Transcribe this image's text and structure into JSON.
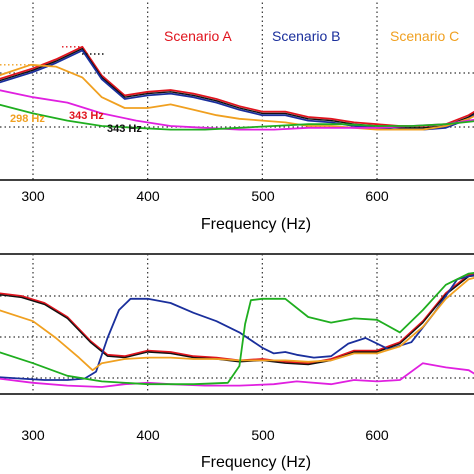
{
  "colors": {
    "scenario_a": "#e0141e",
    "scenario_b": "#1a2f9c",
    "scenario_c": "#f0a020",
    "black": "#111111",
    "green": "#1fae1f",
    "magenta": "#e020e0",
    "grid": "#333333"
  },
  "chart_data": [
    {
      "type": "line",
      "title": "",
      "xlabel": "Frequency (Hz)",
      "ylabel": "",
      "xlim": [
        270,
        690
      ],
      "ylim": [
        0,
        100
      ],
      "y_ticks_hidden": true,
      "x_ticks": [
        "300",
        "400",
        "500",
        "600"
      ],
      "grid": true,
      "legend_position": "top",
      "legend": [
        {
          "label": "Scenario A",
          "color": "#e0141e"
        },
        {
          "label": "Scenario B",
          "color": "#1a2f9c"
        },
        {
          "label": "Scenario C",
          "color": "#f0a020"
        }
      ],
      "annotations": [
        {
          "text": "298 Hz",
          "x": 298,
          "color": "#f0a020"
        },
        {
          "text": "343 Hz",
          "x": 343,
          "color": "#e0141e"
        },
        {
          "text": "343 Hz",
          "x": 343,
          "color": "#111111"
        }
      ],
      "series": [
        {
          "color": "#e0141e",
          "x": [
            270,
            300,
            320,
            343,
            360,
            380,
            400,
            420,
            440,
            460,
            480,
            500,
            520,
            540,
            560,
            580,
            600,
            620,
            640,
            660,
            680,
            690
          ],
          "y": [
            56,
            62,
            67,
            74,
            58,
            47,
            49,
            50,
            48,
            45,
            41,
            38,
            38,
            35,
            34,
            32,
            31,
            30,
            30,
            31,
            36,
            40
          ]
        },
        {
          "color": "#111111",
          "x": [
            270,
            300,
            320,
            343,
            360,
            380,
            400,
            420,
            440,
            460,
            480,
            500,
            520,
            540,
            560,
            580,
            600,
            620,
            640,
            660,
            680,
            690
          ],
          "y": [
            55,
            61,
            66,
            73,
            57,
            46,
            48,
            49,
            47,
            44,
            40,
            37,
            37,
            34,
            33,
            31,
            30,
            29,
            29,
            30,
            35,
            39
          ]
        },
        {
          "color": "#1a2f9c",
          "x": [
            270,
            300,
            320,
            343,
            360,
            380,
            400,
            420,
            440,
            460,
            480,
            500,
            520,
            540,
            560,
            580,
            600,
            620,
            640,
            660,
            680,
            690
          ],
          "y": [
            54,
            60,
            65,
            72,
            56,
            45,
            47,
            48,
            46,
            43,
            39,
            36,
            36,
            33,
            32,
            30,
            29,
            28,
            28,
            29,
            34,
            38
          ]
        },
        {
          "color": "#f0a020",
          "x": [
            270,
            298,
            320,
            343,
            360,
            380,
            400,
            420,
            440,
            460,
            480,
            500,
            520,
            540,
            560,
            580,
            600,
            620,
            640,
            660,
            680,
            690
          ],
          "y": [
            58,
            64,
            63,
            57,
            46,
            40,
            40,
            42,
            39,
            36,
            34,
            33,
            32,
            30,
            30,
            29,
            28,
            28,
            28,
            30,
            34,
            37
          ]
        },
        {
          "color": "#e020e0",
          "x": [
            270,
            300,
            330,
            360,
            390,
            420,
            450,
            480,
            510,
            540,
            570,
            600,
            630,
            660,
            690
          ],
          "y": [
            50,
            46,
            43,
            37,
            33,
            30,
            29,
            28,
            28,
            29,
            29,
            29,
            30,
            31,
            34
          ]
        },
        {
          "color": "#1fae1f",
          "x": [
            270,
            300,
            330,
            360,
            390,
            420,
            450,
            480,
            510,
            540,
            570,
            600,
            630,
            660,
            690
          ],
          "y": [
            42,
            37,
            33,
            30,
            29,
            28,
            28,
            29,
            30,
            31,
            31,
            30,
            30,
            31,
            33
          ]
        }
      ]
    },
    {
      "type": "line",
      "title": "",
      "xlabel": "Frequency (Hz)",
      "ylabel": "",
      "xlim": [
        270,
        690
      ],
      "ylim": [
        0,
        100
      ],
      "y_ticks_hidden": true,
      "x_ticks": [
        "300",
        "400",
        "500",
        "600"
      ],
      "grid": true,
      "series": [
        {
          "color": "#e0141e",
          "x": [
            270,
            290,
            310,
            330,
            350,
            365,
            380,
            400,
            420,
            440,
            460,
            480,
            500,
            520,
            540,
            560,
            580,
            600,
            620,
            640,
            660,
            680,
            690
          ],
          "y": [
            72,
            70,
            65,
            55,
            38,
            28,
            27,
            31,
            30,
            27,
            26,
            24,
            25,
            23,
            22,
            25,
            31,
            31,
            37,
            52,
            72,
            85,
            86
          ]
        },
        {
          "color": "#111111",
          "x": [
            270,
            290,
            310,
            330,
            350,
            365,
            380,
            400,
            420,
            440,
            460,
            480,
            500,
            520,
            540,
            560,
            580,
            600,
            620,
            640,
            660,
            680,
            690
          ],
          "y": [
            71,
            69,
            64,
            54,
            37,
            27,
            26,
            30,
            29,
            26,
            25,
            23,
            24,
            22,
            21,
            24,
            30,
            30,
            36,
            51,
            71,
            84,
            85
          ]
        },
        {
          "color": "#1a2f9c",
          "x": [
            270,
            290,
            310,
            330,
            345,
            355,
            365,
            375,
            385,
            400,
            420,
            440,
            460,
            480,
            500,
            510,
            520,
            530,
            545,
            560,
            575,
            590,
            610,
            630,
            650,
            670,
            690
          ],
          "y": [
            12,
            11,
            10,
            10,
            11,
            16,
            40,
            60,
            68,
            68,
            65,
            58,
            52,
            44,
            33,
            29,
            30,
            28,
            26,
            27,
            36,
            40,
            32,
            37,
            58,
            82,
            86
          ]
        },
        {
          "color": "#f0a020",
          "x": [
            270,
            300,
            320,
            340,
            352,
            360,
            380,
            400,
            420,
            440,
            460,
            480,
            500,
            520,
            540,
            560,
            580,
            600,
            620,
            640,
            660,
            680,
            690
          ],
          "y": [
            60,
            52,
            40,
            26,
            17,
            22,
            25,
            26,
            26,
            25,
            25,
            24,
            24,
            24,
            23,
            24,
            29,
            29,
            34,
            48,
            68,
            82,
            84
          ]
        },
        {
          "color": "#e020e0",
          "x": [
            270,
            300,
            330,
            360,
            380,
            400,
            420,
            450,
            480,
            510,
            530,
            560,
            580,
            600,
            620,
            640,
            660,
            680,
            690
          ],
          "y": [
            11,
            8,
            6,
            5,
            7,
            8,
            7,
            6,
            6,
            7,
            9,
            7,
            10,
            9,
            10,
            22,
            19,
            17,
            12
          ]
        },
        {
          "color": "#1fae1f",
          "x": [
            270,
            300,
            330,
            360,
            400,
            440,
            470,
            480,
            485,
            490,
            500,
            520,
            540,
            560,
            580,
            600,
            620,
            640,
            660,
            680,
            690
          ],
          "y": [
            30,
            22,
            13,
            9,
            7,
            7,
            8,
            20,
            50,
            67,
            68,
            68,
            55,
            51,
            54,
            53,
            44,
            60,
            78,
            86,
            87
          ]
        }
      ]
    }
  ]
}
